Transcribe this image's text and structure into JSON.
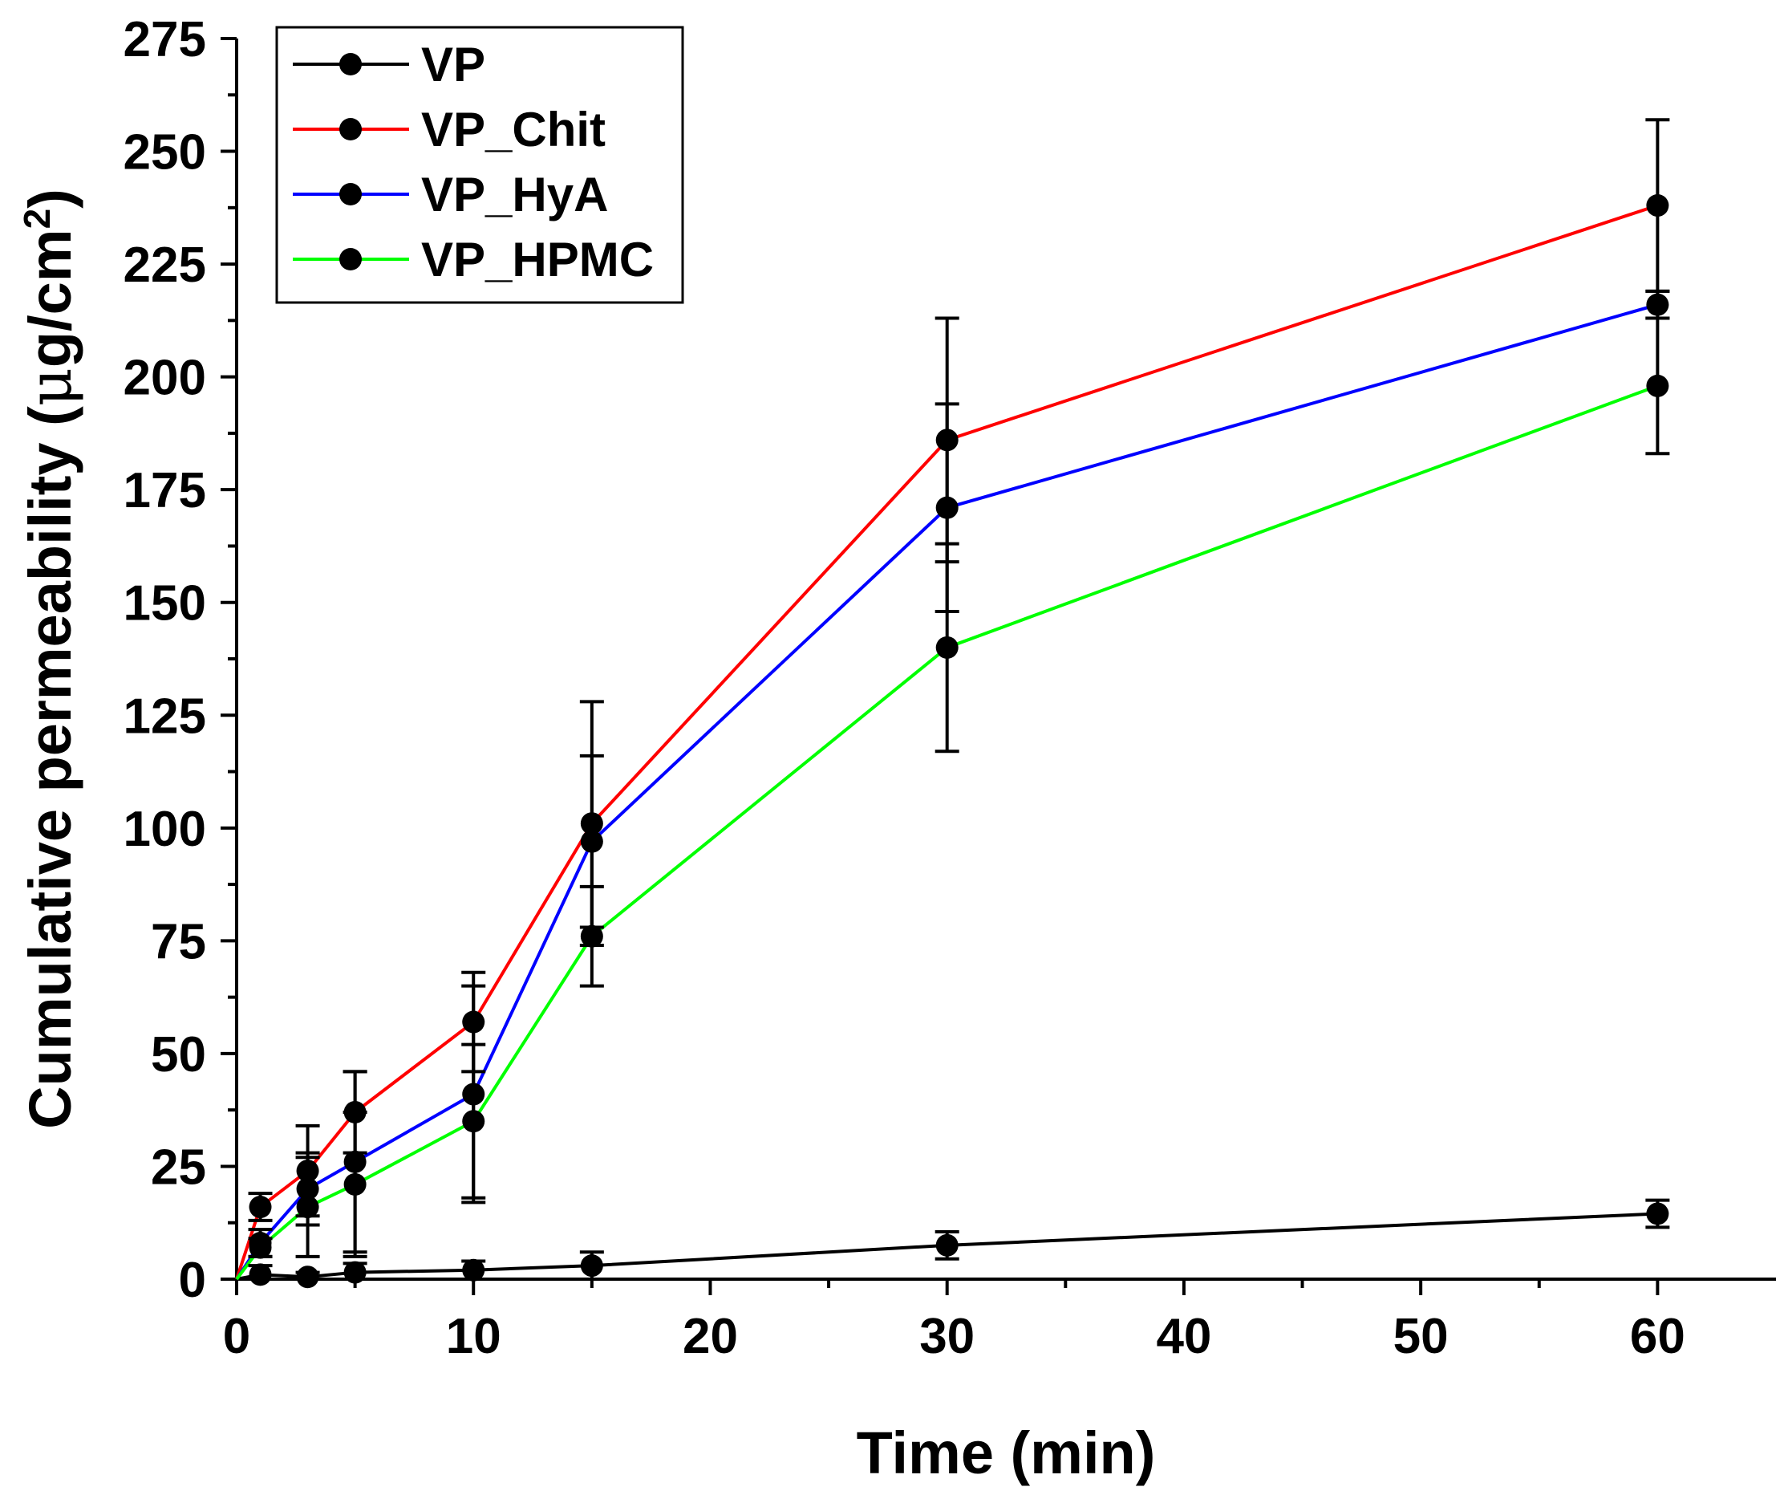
{
  "chart_data": {
    "type": "line",
    "xlabel": "Time (min)",
    "ylabel": "Cumulative permeability",
    "ylabel_unit_prefix": "(",
    "ylabel_mu": "μ",
    "ylabel_unit_base": "g/cm",
    "ylabel_unit_exp": "2",
    "ylabel_unit_suffix": ")",
    "xlim": [
      0,
      65
    ],
    "ylim": [
      0,
      275
    ],
    "x_ticks": [
      0,
      10,
      20,
      30,
      40,
      50,
      60
    ],
    "x_tick_labels": [
      "0",
      "10",
      "20",
      "30",
      "40",
      "50",
      "60"
    ],
    "y_ticks": [
      0,
      25,
      50,
      75,
      100,
      125,
      150,
      175,
      200,
      225,
      250,
      275
    ],
    "y_tick_labels": [
      "0",
      "25",
      "50",
      "75",
      "100",
      "125",
      "150",
      "175",
      "200",
      "225",
      "250",
      "275"
    ],
    "grid": false,
    "legend_position": "top-left",
    "x": [
      0,
      1,
      3,
      5,
      10,
      15,
      30,
      60
    ],
    "series": [
      {
        "name": "VP",
        "color": "#000000",
        "values": [
          0,
          1,
          0.5,
          1.5,
          2,
          3,
          7.5,
          14.5
        ],
        "errors": [
          0,
          2,
          1,
          2,
          2,
          3,
          3,
          3
        ]
      },
      {
        "name": "VP_Chit",
        "color": "#ff0000",
        "values": [
          0,
          16,
          24,
          37,
          57,
          101,
          186,
          238
        ],
        "errors": [
          0,
          3,
          10,
          9,
          11,
          27,
          27,
          19
        ]
      },
      {
        "name": "VP_HyA",
        "color": "#0000ff",
        "values": [
          0,
          8,
          20,
          26,
          41,
          97,
          171,
          216
        ],
        "errors": [
          0,
          3,
          8,
          20,
          24,
          19,
          23,
          3
        ]
      },
      {
        "name": "VP_HPMC",
        "color": "#00ff00",
        "values": [
          0,
          7,
          16,
          21,
          35,
          76,
          140,
          198
        ],
        "errors": [
          0,
          2,
          11,
          16,
          17,
          11,
          23,
          15
        ]
      }
    ]
  }
}
